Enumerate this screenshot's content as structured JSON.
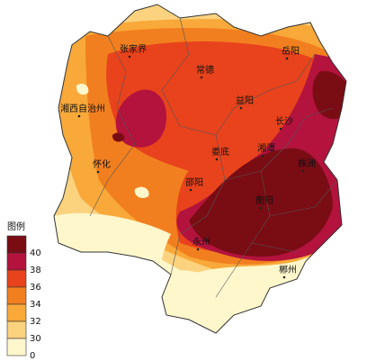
{
  "cities": [
    "张家界",
    "常德",
    "岳阳",
    "湘西自治州",
    "益阳",
    "长沙",
    "娄底",
    "湘潭",
    "株洲",
    "怀化",
    "邵阳",
    "衡阳",
    "永州",
    "郴州"
  ],
  "legend": {
    "title": "图例",
    "ticks": [
      40,
      38,
      36,
      34,
      32,
      30,
      0
    ],
    "colors": [
      "#7a0c14",
      "#b3133d",
      "#e8431c",
      "#f27f1f",
      "#f8a93a",
      "#fbd27e",
      "#fff7cc"
    ]
  }
}
